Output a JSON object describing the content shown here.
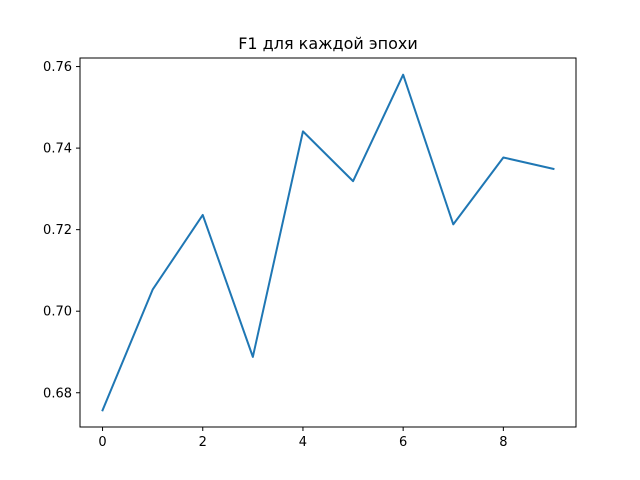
{
  "chart_data": {
    "type": "line",
    "title": "F1 для каждой эпохи",
    "xlabel": "",
    "ylabel": "",
    "x": [
      0,
      1,
      2,
      3,
      4,
      5,
      6,
      7,
      8,
      9
    ],
    "series": [
      {
        "values": [
          0.6757,
          0.7053,
          0.7236,
          0.6888,
          0.7441,
          0.7319,
          0.758,
          0.7213,
          0.7377,
          0.7349
        ],
        "color": "#1f77b4"
      }
    ],
    "xlim": [
      -0.45,
      9.45
    ],
    "ylim": [
      0.6716,
      0.7621
    ],
    "xticks": [
      0,
      2,
      4,
      6,
      8
    ],
    "xtick_labels": [
      "0",
      "2",
      "4",
      "6",
      "8"
    ],
    "yticks": [
      0.68,
      0.7,
      0.72,
      0.74,
      0.76
    ],
    "ytick_labels": [
      "0.68",
      "0.70",
      "0.72",
      "0.74",
      "0.76"
    ],
    "grid": false,
    "legend": "none"
  }
}
